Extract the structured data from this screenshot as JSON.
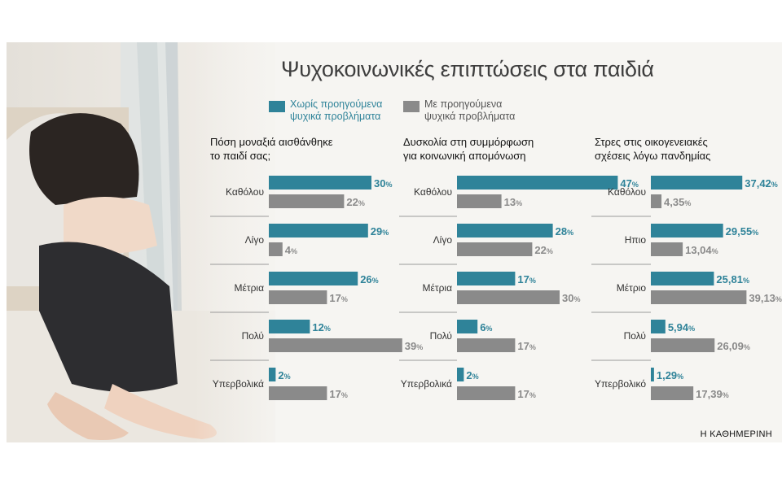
{
  "title": "Ψυχοκοινωνικές επιπτώσεις στα παιδιά",
  "legend": [
    {
      "lines": [
        "Χωρίς προηγούμενα",
        "ψυχικά προβλήματα"
      ],
      "color": "#2f8399",
      "text_color": "#2f8399"
    },
    {
      "lines": [
        "Με προηγούμενα",
        "ψυχικά προβλήματα"
      ],
      "color": "#8a8a8a",
      "text_color": "#555555"
    }
  ],
  "colors": {
    "teal": "#2f8399",
    "gray": "#8a8a8a"
  },
  "credit": "Η ΚΑΘΗΜΕΡΙΝΗ",
  "chart_data": [
    {
      "type": "bar",
      "title_lines": [
        "Πόση μοναξιά αισθάνθηκε",
        "το παιδί σας;"
      ],
      "categories": [
        "Καθόλου",
        "Λίγο",
        "Μέτρια",
        "Πολύ",
        "Υπερβολικά"
      ],
      "series": [
        {
          "name": "Χωρίς προηγούμενα ψυχικά προβλήματα",
          "values": [
            30,
            29,
            26,
            12,
            2
          ],
          "labels": [
            "30",
            "29",
            "26",
            "12",
            "2"
          ]
        },
        {
          "name": "Με προηγούμενα ψυχικά προβλήματα",
          "values": [
            22,
            4,
            17,
            39,
            17
          ],
          "labels": [
            "22",
            "4",
            "17",
            "39",
            "17"
          ]
        }
      ],
      "unit": "%",
      "xlim": [
        0,
        50
      ]
    },
    {
      "type": "bar",
      "title_lines": [
        "Δυσκολία στη συμμόρφωση",
        "για κοινωνική απομόνωση"
      ],
      "categories": [
        "Καθόλου",
        "Λίγο",
        "Μέτρια",
        "Πολύ",
        "Υπερβολικά"
      ],
      "series": [
        {
          "name": "Χωρίς προηγούμενα ψυχικά προβλήματα",
          "values": [
            47,
            28,
            17,
            6,
            2
          ],
          "labels": [
            "47",
            "28",
            "17",
            "6",
            "2"
          ]
        },
        {
          "name": "Με προηγούμενα ψυχικά προβλήματα",
          "values": [
            13,
            22,
            30,
            17,
            17
          ],
          "labels": [
            "13",
            "22",
            "30",
            "17",
            "17"
          ]
        }
      ],
      "unit": "%",
      "xlim": [
        0,
        50
      ]
    },
    {
      "type": "bar",
      "title_lines": [
        "Στρες στις οικογενειακές",
        "σχέσεις λόγω πανδημίας"
      ],
      "categories": [
        "Καθόλου",
        "Ηπιο",
        "Μέτριο",
        "Πολύ",
        "Υπερβολικό"
      ],
      "series": [
        {
          "name": "Χωρίς προηγούμενα ψυχικά προβλήματα",
          "values": [
            37.42,
            29.55,
            25.81,
            5.94,
            1.29
          ],
          "labels": [
            "37,42",
            "29,55",
            "25,81",
            "5,94",
            "1,29"
          ]
        },
        {
          "name": "Με προηγούμενα ψυχικά προβλήματα",
          "values": [
            4.35,
            13.04,
            39.13,
            26.09,
            17.39
          ],
          "labels": [
            "4,35",
            "13,04",
            "39,13",
            "26,09",
            "17,39"
          ]
        }
      ],
      "unit": "%",
      "xlim": [
        0,
        50
      ]
    }
  ]
}
